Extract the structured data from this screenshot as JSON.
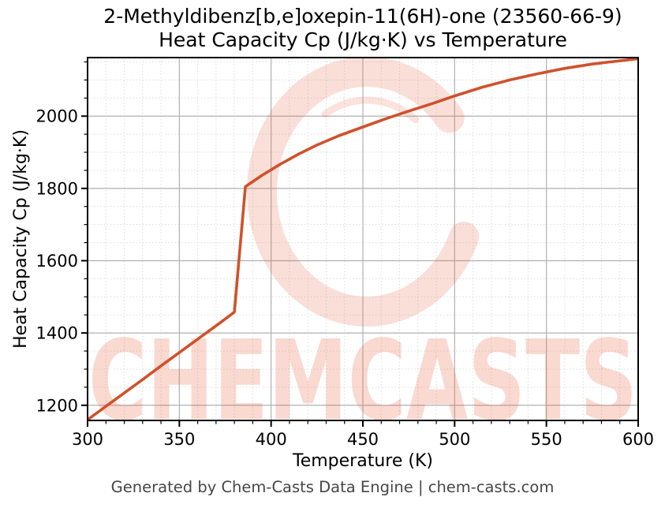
{
  "title": {
    "line1": "2-Methyldibenz[b,e]oxepin-11(6H)-one (23560-66-9)",
    "line2": "Heat Capacity Cp (J/kg·K) vs Temperature"
  },
  "footer": "Generated by Chem-Casts Data Engine | chem-casts.com",
  "watermark": {
    "text": "CHEMCASTS"
  },
  "colors": {
    "line": "#d0512b",
    "grid_major": "#b0b0b0",
    "grid_minor": "#dcdcdc",
    "spine": "#000000",
    "tick_label": "#000000",
    "axis_label": "#000000",
    "footer": "#464646",
    "watermark": "#e8613c",
    "background": "#ffffff"
  },
  "chart_data": {
    "type": "line",
    "title": "2-Methyldibenz[b,e]oxepin-11(6H)-one (23560-66-9)\nHeat Capacity Cp (J/kg·K) vs Temperature",
    "xlabel": "Temperature (K)",
    "ylabel": "Heat Capacity Cp (J/kg·K)",
    "xlim": [
      300,
      600
    ],
    "ylim": [
      1158,
      2162
    ],
    "x_major_ticks": [
      300,
      350,
      400,
      450,
      500,
      550,
      600
    ],
    "y_major_ticks": [
      1200,
      1400,
      1600,
      1800,
      2000
    ],
    "x_minor_step": 10,
    "y_minor_step": 50,
    "grid": true,
    "legend": false,
    "series": [
      {
        "name": "Heat Capacity Cp",
        "points": [
          [
            300,
            1160
          ],
          [
            310,
            1197
          ],
          [
            320,
            1234
          ],
          [
            330,
            1271
          ],
          [
            340,
            1309
          ],
          [
            350,
            1346
          ],
          [
            360,
            1383
          ],
          [
            370,
            1420
          ],
          [
            379,
            1454
          ],
          [
            380,
            1458
          ],
          [
            386,
            1805
          ],
          [
            395,
            1836
          ],
          [
            405,
            1867
          ],
          [
            415,
            1895
          ],
          [
            425,
            1920
          ],
          [
            437,
            1946
          ],
          [
            450,
            1970
          ],
          [
            462,
            1992
          ],
          [
            475,
            2014
          ],
          [
            488,
            2035
          ],
          [
            500,
            2056
          ],
          [
            515,
            2080
          ],
          [
            530,
            2100
          ],
          [
            545,
            2117
          ],
          [
            560,
            2132
          ],
          [
            575,
            2144
          ],
          [
            588,
            2152
          ],
          [
            600,
            2159
          ]
        ]
      }
    ]
  }
}
